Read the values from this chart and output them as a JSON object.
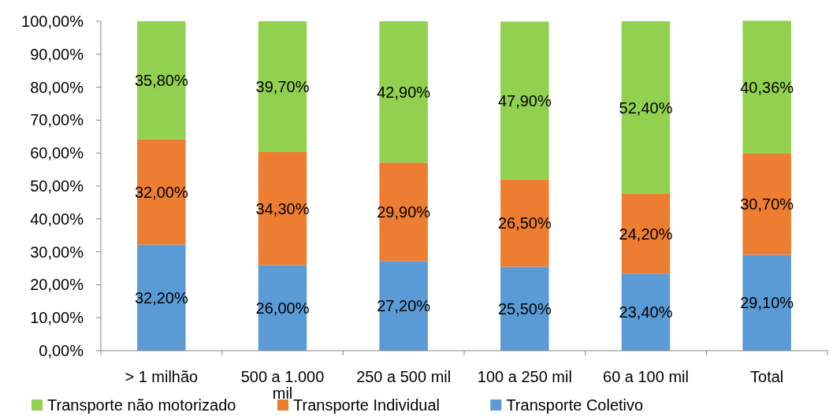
{
  "chart_data": {
    "type": "bar",
    "stacked": true,
    "categories": [
      "> 1 milhão",
      "500 a 1.000 mil",
      "250 a 500 mil",
      "100 a 250 mil",
      "60 a 100 mil",
      "Total"
    ],
    "series": [
      {
        "name": "Transporte Coletivo",
        "color": "#5b9bd5",
        "values": [
          32.2,
          26.0,
          27.2,
          25.5,
          23.4,
          29.1
        ],
        "value_labels": [
          "32,20%",
          "26,00%",
          "27,20%",
          "25,50%",
          "23,40%",
          "29,10%"
        ]
      },
      {
        "name": "Transporte Individual",
        "color": "#ed7d31",
        "values": [
          32.0,
          34.3,
          29.9,
          26.5,
          24.2,
          30.7
        ],
        "value_labels": [
          "32,00%",
          "34,30%",
          "29,90%",
          "26,50%",
          "24,20%",
          "30,70%"
        ]
      },
      {
        "name": "Transporte não motorizado",
        "color": "#92d050",
        "values": [
          35.8,
          39.7,
          42.9,
          47.9,
          52.4,
          40.36
        ],
        "value_labels": [
          "35,80%",
          "39,70%",
          "42,90%",
          "47,90%",
          "52,40%",
          "40,36%"
        ]
      }
    ],
    "ylim": [
      0,
      100
    ],
    "yticks": [
      {
        "value": 0,
        "label": "0,00%"
      },
      {
        "value": 10,
        "label": "10,00%"
      },
      {
        "value": 20,
        "label": "20,00%"
      },
      {
        "value": 30,
        "label": "30,00%"
      },
      {
        "value": 40,
        "label": "40,00%"
      },
      {
        "value": 50,
        "label": "50,00%"
      },
      {
        "value": 60,
        "label": "60,00%"
      },
      {
        "value": 70,
        "label": "70,00%"
      },
      {
        "value": 80,
        "label": "80,00%"
      },
      {
        "value": 90,
        "label": "90,00%"
      },
      {
        "value": 100,
        "label": "100,00%"
      }
    ],
    "legend": "bottom"
  }
}
